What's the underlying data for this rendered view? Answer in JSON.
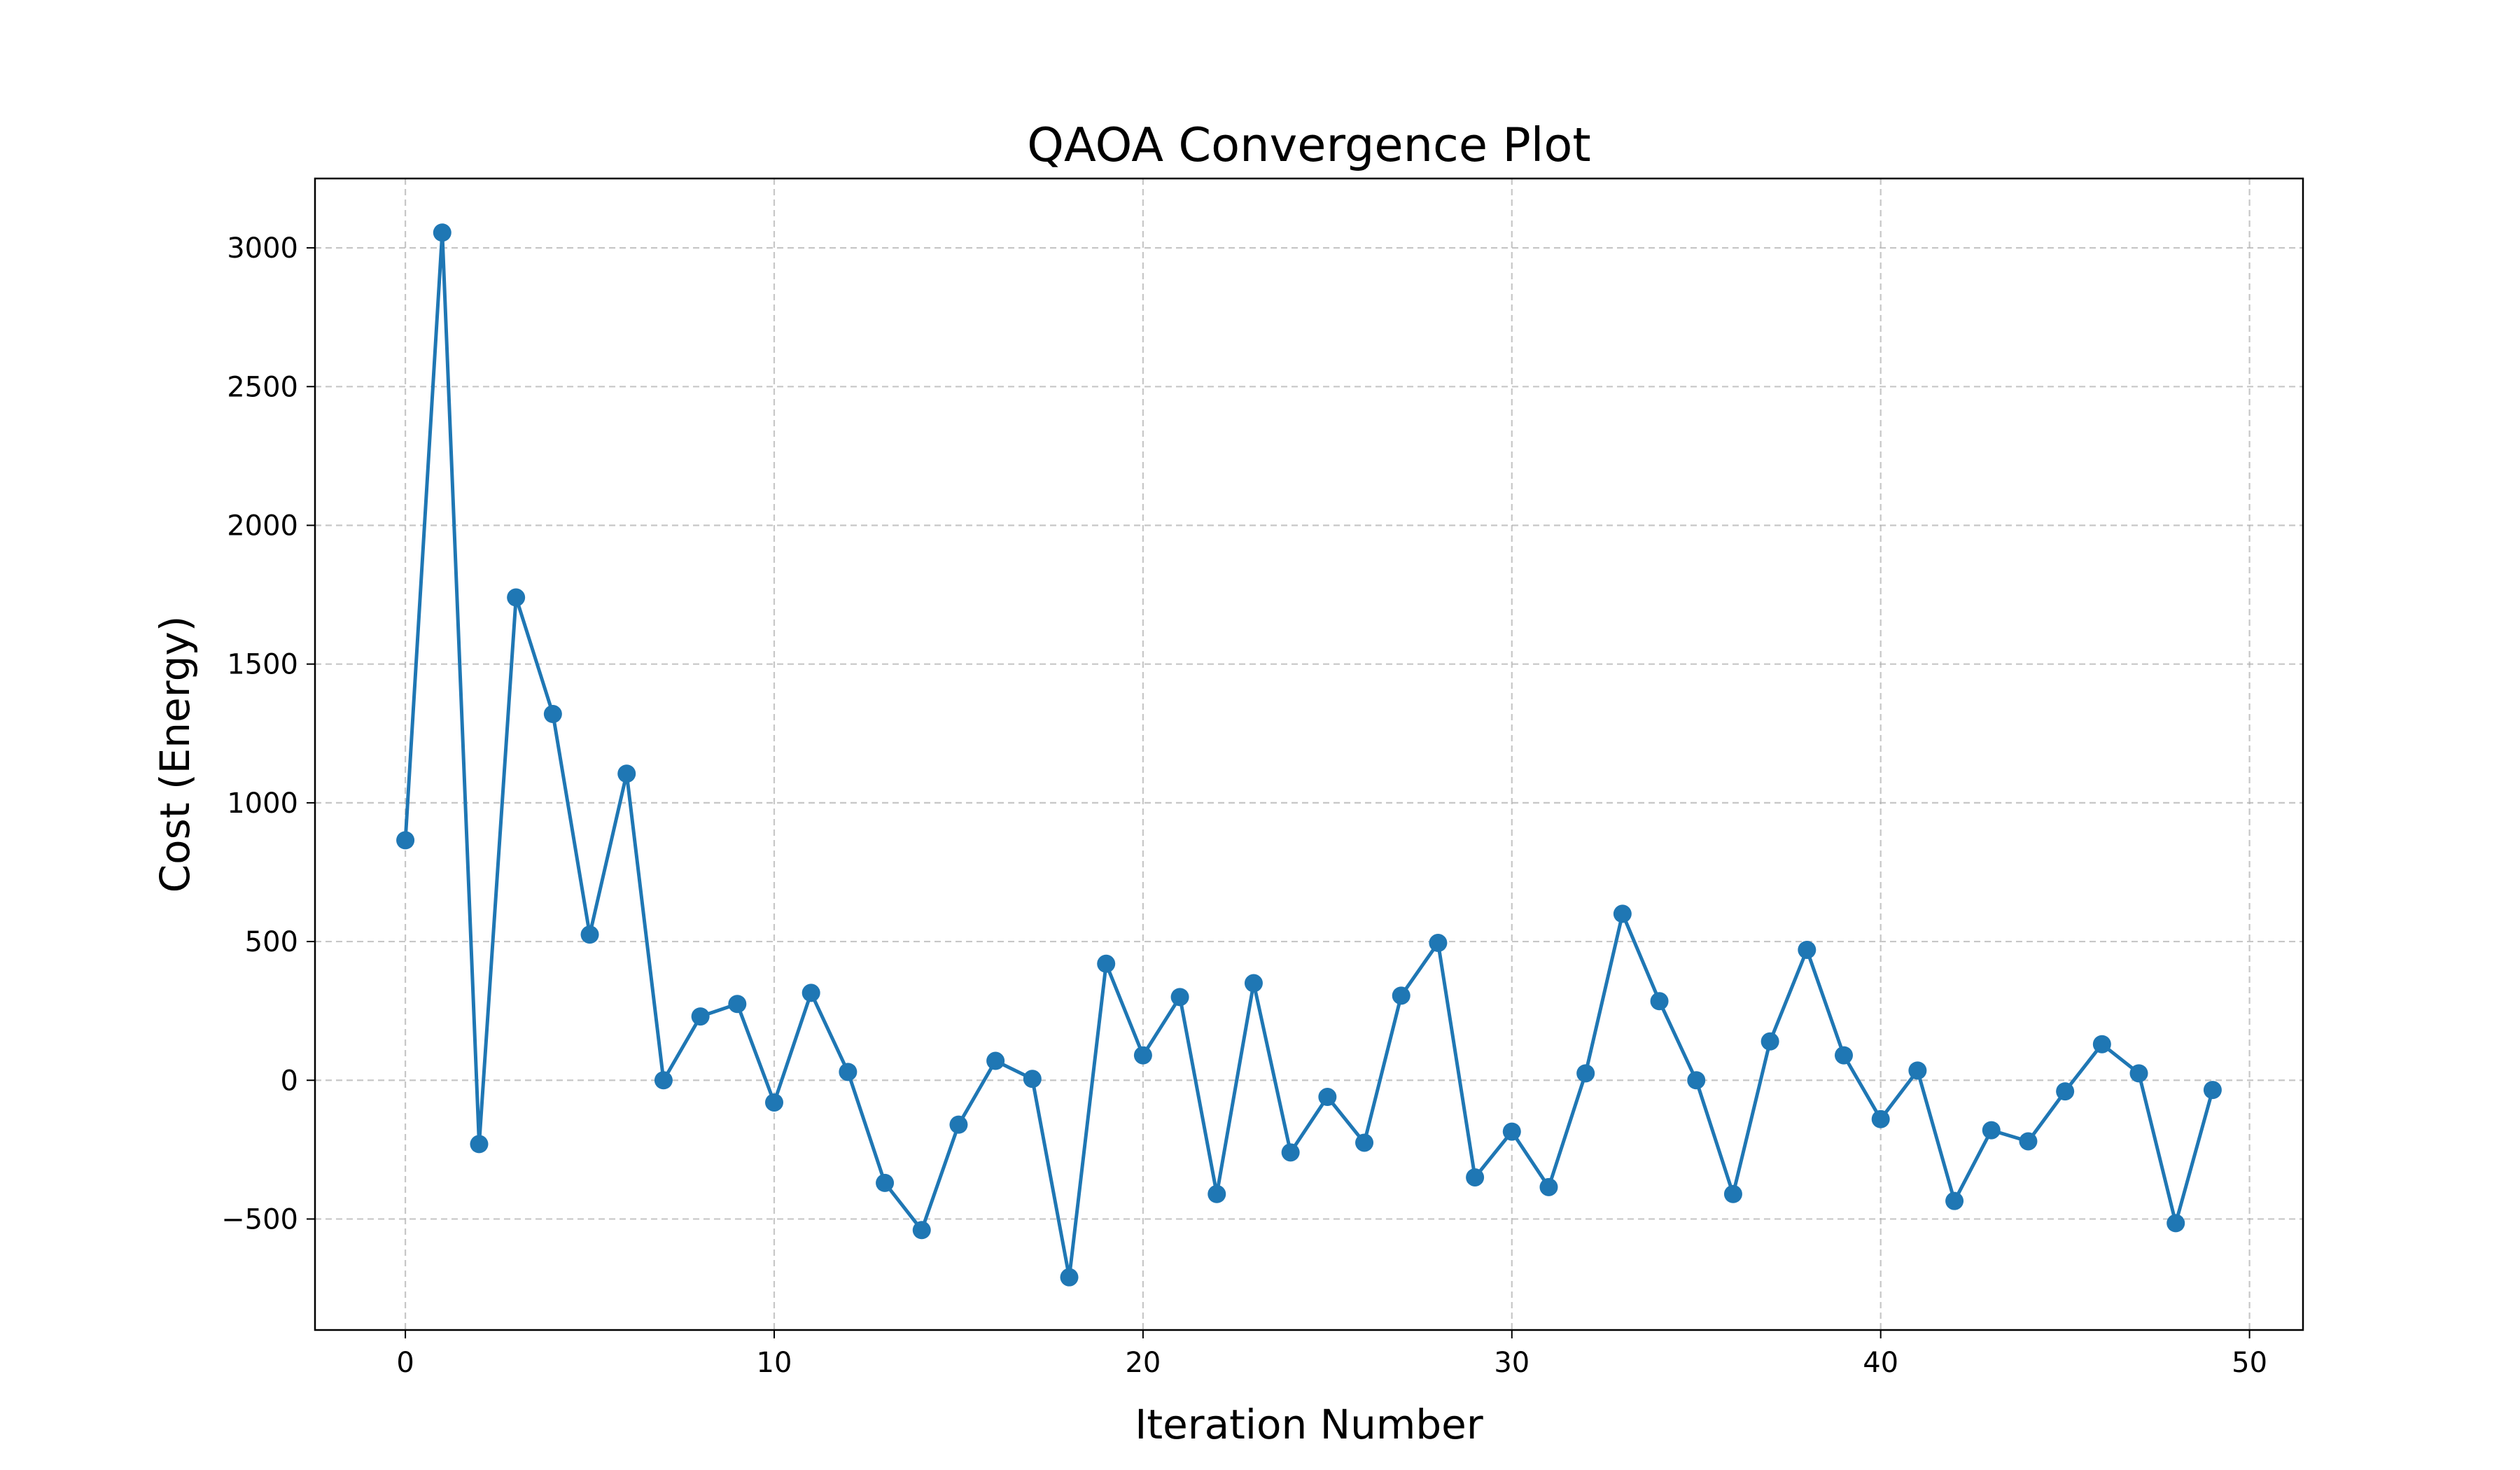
{
  "chart_data": {
    "type": "line",
    "title": "QAOA Convergence Plot",
    "xlabel": "Iteration Number",
    "ylabel": "Cost (Energy)",
    "xlim": [
      -2.45,
      51.45
    ],
    "ylim": [
      -900,
      3250
    ],
    "xticks": [
      0,
      10,
      20,
      30,
      40,
      50
    ],
    "yticks": [
      -500,
      0,
      500,
      1000,
      1500,
      2000,
      2500,
      3000
    ],
    "ytick_labels": [
      "−500",
      "0",
      "500",
      "1000",
      "1500",
      "2000",
      "2500",
      "3000"
    ],
    "grid": true,
    "grid_style": "dashed",
    "legend": "none",
    "series": [
      {
        "color": "#1f77b4",
        "marker": "circle",
        "x": [
          0,
          1,
          2,
          3,
          4,
          5,
          6,
          7,
          8,
          9,
          10,
          11,
          12,
          13,
          14,
          15,
          16,
          17,
          18,
          19,
          20,
          21,
          22,
          23,
          24,
          25,
          26,
          27,
          28,
          29,
          30,
          31,
          32,
          33,
          34,
          35,
          36,
          37,
          38,
          39,
          40,
          41,
          42,
          43,
          44,
          45,
          46,
          47,
          48,
          49
        ],
        "y": [
          865,
          3055,
          -230,
          1740,
          1320,
          525,
          1105,
          0,
          230,
          275,
          -80,
          315,
          30,
          -370,
          -540,
          -160,
          70,
          5,
          -710,
          420,
          90,
          300,
          -410,
          350,
          -260,
          -60,
          -225,
          305,
          495,
          -350,
          -185,
          -385,
          25,
          600,
          285,
          0,
          -410,
          140,
          470,
          90,
          -140,
          35,
          -435,
          -180,
          -220,
          -40,
          130,
          25,
          -515,
          -35
        ]
      }
    ]
  }
}
